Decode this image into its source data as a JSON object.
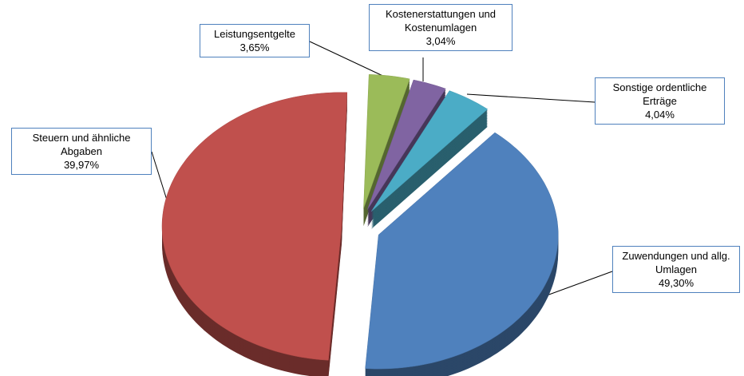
{
  "chart_data": {
    "type": "pie",
    "categories": [
      "Leistungsentgelte",
      "Kostenerstattungen und Kostenumlagen",
      "Sonstige ordentliche Erträge",
      "Steuern und ähnliche Abgaben",
      "Zuwendungen und allg. Umlagen"
    ],
    "values": [
      3.65,
      3.04,
      4.04,
      39.97,
      49.3
    ],
    "value_labels": [
      "3,65%",
      "3,04%",
      "4,04%",
      "39,97%",
      "49,30%"
    ],
    "colors": [
      "#9bbb59",
      "#8064a2",
      "#4bacc6",
      "#4f81bd",
      "#c0504d"
    ]
  }
}
